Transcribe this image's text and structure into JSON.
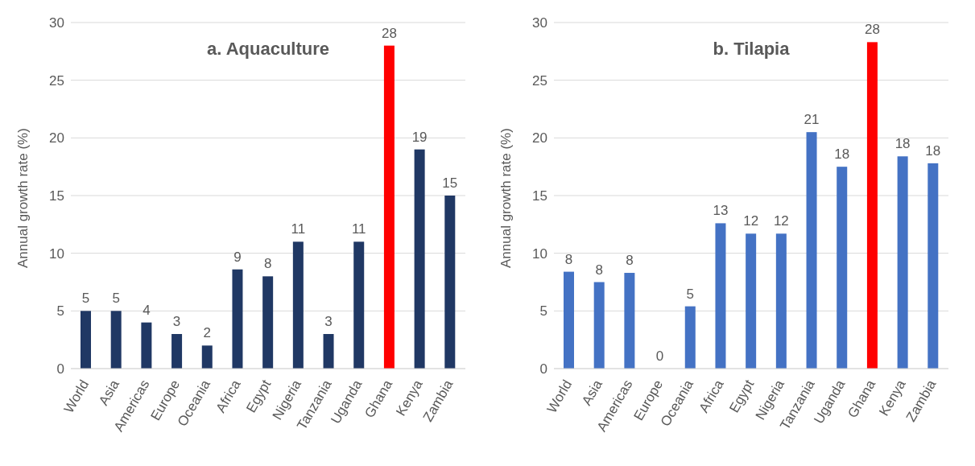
{
  "chart_data": [
    {
      "type": "bar",
      "title": "a. Aquaculture",
      "ylabel": "Annual growth rate (%)",
      "categories": [
        "World",
        "Asia",
        "Americas",
        "Europe",
        "Oceania",
        "Africa",
        "Egypt",
        "Nigeria",
        "Tanzania",
        "Uganda",
        "Ghana",
        "Kenya",
        "Zambia"
      ],
      "values": [
        5,
        5,
        4,
        3,
        2,
        8.6,
        8,
        11,
        3,
        11,
        28,
        19,
        15
      ],
      "colors": [
        "#203864",
        "#203864",
        "#203864",
        "#203864",
        "#203864",
        "#203864",
        "#203864",
        "#203864",
        "#203864",
        "#203864",
        "#ff0000",
        "#203864",
        "#203864"
      ],
      "value_labels": [
        "5",
        "5",
        "4",
        "3",
        "2",
        "9",
        "8",
        "11",
        "3",
        "11",
        "28",
        "19",
        "15"
      ],
      "ylim": [
        0,
        30
      ],
      "yticks": [
        0,
        5,
        10,
        15,
        20,
        25,
        30
      ],
      "grid": "y",
      "legend": false
    },
    {
      "type": "bar",
      "title": "b. Tilapia",
      "ylabel": "Annual growth rate (%)",
      "categories": [
        "World",
        "Asia",
        "Americas",
        "Europe",
        "Oceania",
        "Africa",
        "Egypt",
        "Nigeria",
        "Tanzania",
        "Uganda",
        "Ghana",
        "Kenya",
        "Zambia"
      ],
      "values": [
        8.4,
        7.5,
        8.3,
        0,
        5.4,
        12.6,
        11.7,
        11.7,
        20.5,
        17.5,
        28.3,
        18.4,
        17.8
      ],
      "colors": [
        "#4472c4",
        "#4472c4",
        "#4472c4",
        "#4472c4",
        "#4472c4",
        "#4472c4",
        "#4472c4",
        "#4472c4",
        "#4472c4",
        "#4472c4",
        "#ff0000",
        "#4472c4",
        "#4472c4"
      ],
      "value_labels": [
        "8",
        "8",
        "8",
        "0",
        "5",
        "13",
        "12",
        "12",
        "21",
        "18",
        "28",
        "18",
        "18"
      ],
      "ylim": [
        0,
        30
      ],
      "yticks": [
        0,
        5,
        10,
        15,
        20,
        25,
        30
      ],
      "grid": "y",
      "legend": false
    }
  ]
}
